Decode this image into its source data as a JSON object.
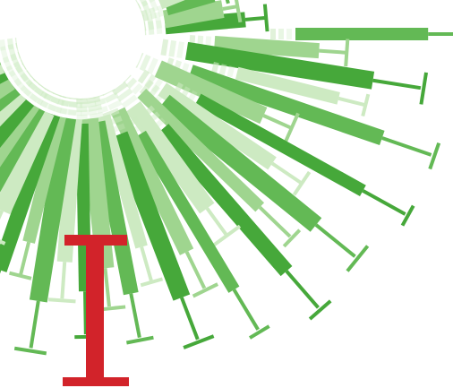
{
  "artwork": {
    "subject": "syringe-sunburst-illustration",
    "colors": {
      "background": "#ffffff",
      "green_dark": "#46a83a",
      "green_mid": "#63b955",
      "green_light": "#9fd58f",
      "green_pale": "#cdeac2",
      "red_accent": "#d2232a"
    }
  }
}
